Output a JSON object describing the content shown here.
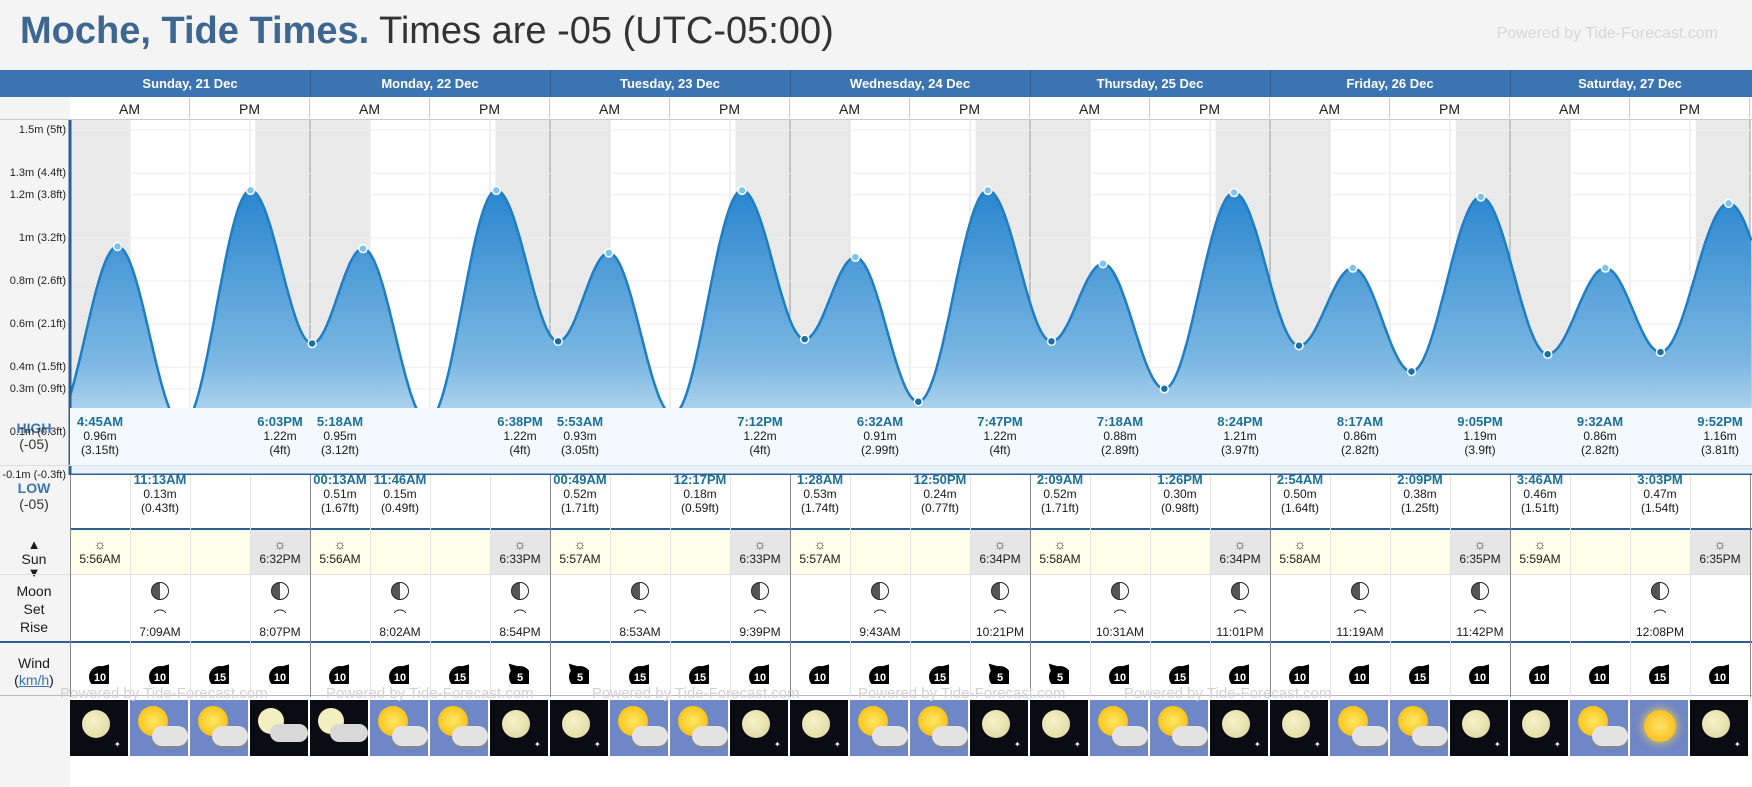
{
  "header": {
    "location": "Moche, Tide Times.",
    "timezone": "Times are -05 (UTC-05:00)",
    "powered": "Powered by Tide-Forecast.com"
  },
  "days": [
    "Sunday, 21 Dec",
    "Monday, 22 Dec",
    "Tuesday, 23 Dec",
    "Wednesday, 24 Dec",
    "Thursday, 25 Dec",
    "Friday, 26 Dec",
    "Saturday, 27 Dec"
  ],
  "ampm": [
    "AM",
    "PM"
  ],
  "row_labels": {
    "high": "HIGH",
    "high_tz": "(-05)",
    "low": "LOW",
    "low_tz": "(-05)",
    "sun": "Sun",
    "moon": "Moon",
    "set": "Set",
    "rise": "Rise",
    "wind": "Wind",
    "wind_unit": "km/h"
  },
  "chart_data": {
    "type": "area",
    "y_unit": "m",
    "ylim": [
      -0.1,
      1.5
    ],
    "y_ticks": [
      "-0.1m (-0.3ft)",
      "0.1m (0.3ft)",
      "0.3m (0.9ft)",
      "0.4m (1.5ft)",
      "0.6m (2.1ft)",
      "0.8m (2.6ft)",
      "1m (3.2ft)",
      "1.2m (3.8ft)",
      "1.3m (4.4ft)",
      "1.5m (5ft)"
    ],
    "y_tick_values": [
      -0.1,
      0.1,
      0.3,
      0.4,
      0.6,
      0.8,
      1.0,
      1.2,
      1.3,
      1.5
    ],
    "x_range": [
      "2025-12-21 00:00",
      "2025-12-28 00:00"
    ],
    "series": [
      {
        "points": [
          {
            "t": "2025-12-21 04:45",
            "h": 0.96
          },
          {
            "t": "2025-12-21 11:13",
            "h": 0.13
          },
          {
            "t": "2025-12-21 18:03",
            "h": 1.22
          },
          {
            "t": "2025-12-22 00:13",
            "h": 0.51
          },
          {
            "t": "2025-12-22 05:18",
            "h": 0.95
          },
          {
            "t": "2025-12-22 11:46",
            "h": 0.15
          },
          {
            "t": "2025-12-22 18:38",
            "h": 1.22
          },
          {
            "t": "2025-12-23 00:49",
            "h": 0.52
          },
          {
            "t": "2025-12-23 05:53",
            "h": 0.93
          },
          {
            "t": "2025-12-23 12:17",
            "h": 0.18
          },
          {
            "t": "2025-12-23 19:12",
            "h": 1.22
          },
          {
            "t": "2025-12-24 01:28",
            "h": 0.53
          },
          {
            "t": "2025-12-24 06:32",
            "h": 0.91
          },
          {
            "t": "2025-12-24 12:50",
            "h": 0.24
          },
          {
            "t": "2025-12-24 19:47",
            "h": 1.22
          },
          {
            "t": "2025-12-25 02:09",
            "h": 0.52
          },
          {
            "t": "2025-12-25 07:18",
            "h": 0.88
          },
          {
            "t": "2025-12-25 13:26",
            "h": 0.3
          },
          {
            "t": "2025-12-25 20:24",
            "h": 1.21
          },
          {
            "t": "2025-12-26 02:54",
            "h": 0.5
          },
          {
            "t": "2025-12-26 08:17",
            "h": 0.86
          },
          {
            "t": "2025-12-26 14:09",
            "h": 0.38
          },
          {
            "t": "2025-12-26 21:05",
            "h": 1.19
          },
          {
            "t": "2025-12-27 03:46",
            "h": 0.46
          },
          {
            "t": "2025-12-27 09:32",
            "h": 0.86
          },
          {
            "t": "2025-12-27 15:03",
            "h": 0.47
          },
          {
            "t": "2025-12-27 21:52",
            "h": 1.16
          }
        ]
      }
    ],
    "night_periods": [
      [
        "2025-12-21 00:00",
        "2025-12-21 05:56"
      ],
      [
        "2025-12-21 18:32",
        "2025-12-22 05:56"
      ],
      [
        "2025-12-22 18:33",
        "2025-12-23 05:57"
      ],
      [
        "2025-12-23 18:33",
        "2025-12-24 05:57"
      ],
      [
        "2025-12-24 18:34",
        "2025-12-25 05:58"
      ],
      [
        "2025-12-25 18:34",
        "2025-12-26 05:58"
      ],
      [
        "2025-12-26 18:35",
        "2025-12-27 05:59"
      ],
      [
        "2025-12-27 18:35",
        "2025-12-28 00:00"
      ]
    ]
  },
  "tides_high": [
    {
      "t": "2025-12-21 04:45",
      "time": "4:45AM",
      "m": "0.96m",
      "ft": "(3.15ft)"
    },
    {
      "t": "2025-12-21 18:03",
      "time": "6:03PM",
      "m": "1.22m",
      "ft": "(4ft)"
    },
    {
      "t": "2025-12-22 05:18",
      "time": "5:18AM",
      "m": "0.95m",
      "ft": "(3.12ft)"
    },
    {
      "t": "2025-12-22 18:38",
      "time": "6:38PM",
      "m": "1.22m",
      "ft": "(4ft)"
    },
    {
      "t": "2025-12-23 05:53",
      "time": "5:53AM",
      "m": "0.93m",
      "ft": "(3.05ft)"
    },
    {
      "t": "2025-12-23 19:12",
      "time": "7:12PM",
      "m": "1.22m",
      "ft": "(4ft)"
    },
    {
      "t": "2025-12-24 06:32",
      "time": "6:32AM",
      "m": "0.91m",
      "ft": "(2.99ft)"
    },
    {
      "t": "2025-12-24 19:47",
      "time": "7:47PM",
      "m": "1.22m",
      "ft": "(4ft)"
    },
    {
      "t": "2025-12-25 07:18",
      "time": "7:18AM",
      "m": "0.88m",
      "ft": "(2.89ft)"
    },
    {
      "t": "2025-12-25 20:24",
      "time": "8:24PM",
      "m": "1.21m",
      "ft": "(3.97ft)"
    },
    {
      "t": "2025-12-26 08:17",
      "time": "8:17AM",
      "m": "0.86m",
      "ft": "(2.82ft)"
    },
    {
      "t": "2025-12-26 21:05",
      "time": "9:05PM",
      "m": "1.19m",
      "ft": "(3.9ft)"
    },
    {
      "t": "2025-12-27 09:32",
      "time": "9:32AM",
      "m": "0.86m",
      "ft": "(2.82ft)"
    },
    {
      "t": "2025-12-27 21:52",
      "time": "9:52PM",
      "m": "1.16m",
      "ft": "(3.81ft)"
    }
  ],
  "tides_low": [
    {
      "t": "2025-12-21 11:13",
      "time": "11:13AM",
      "m": "0.13m",
      "ft": "(0.43ft)"
    },
    {
      "t": "2025-12-22 00:13",
      "time": "00:13AM",
      "m": "0.51m",
      "ft": "(1.67ft)"
    },
    {
      "t": "2025-12-22 11:46",
      "time": "11:46AM",
      "m": "0.15m",
      "ft": "(0.49ft)"
    },
    {
      "t": "2025-12-23 00:49",
      "time": "00:49AM",
      "m": "0.52m",
      "ft": "(1.71ft)"
    },
    {
      "t": "2025-12-23 12:17",
      "time": "12:17PM",
      "m": "0.18m",
      "ft": "(0.59ft)"
    },
    {
      "t": "2025-12-24 01:28",
      "time": "1:28AM",
      "m": "0.53m",
      "ft": "(1.74ft)"
    },
    {
      "t": "2025-12-24 12:50",
      "time": "12:50PM",
      "m": "0.24m",
      "ft": "(0.77ft)"
    },
    {
      "t": "2025-12-25 02:09",
      "time": "2:09AM",
      "m": "0.52m",
      "ft": "(1.71ft)"
    },
    {
      "t": "2025-12-25 13:26",
      "time": "1:26PM",
      "m": "0.30m",
      "ft": "(0.98ft)"
    },
    {
      "t": "2025-12-26 02:54",
      "time": "2:54AM",
      "m": "0.50m",
      "ft": "(1.64ft)"
    },
    {
      "t": "2025-12-26 14:09",
      "time": "2:09PM",
      "m": "0.38m",
      "ft": "(1.25ft)"
    },
    {
      "t": "2025-12-27 03:46",
      "time": "3:46AM",
      "m": "0.46m",
      "ft": "(1.51ft)"
    },
    {
      "t": "2025-12-27 15:03",
      "time": "3:03PM",
      "m": "0.47m",
      "ft": "(1.54ft)"
    }
  ],
  "sun": [
    {
      "rise": "5:56AM",
      "set": "6:32PM"
    },
    {
      "rise": "5:56AM",
      "set": "6:33PM"
    },
    {
      "rise": "5:57AM",
      "set": "6:33PM"
    },
    {
      "rise": "5:57AM",
      "set": "6:34PM"
    },
    {
      "rise": "5:58AM",
      "set": "6:34PM"
    },
    {
      "rise": "5:58AM",
      "set": "6:35PM"
    },
    {
      "rise": "5:59AM",
      "set": "6:35PM"
    }
  ],
  "moon": [
    {
      "t": "2025-12-21 07:09",
      "time": "7:09AM",
      "kind": "rise"
    },
    {
      "t": "2025-12-21 20:07",
      "time": "8:07PM",
      "kind": "set"
    },
    {
      "t": "2025-12-22 08:02",
      "time": "8:02AM",
      "kind": "rise"
    },
    {
      "t": "2025-12-22 20:54",
      "time": "8:54PM",
      "kind": "set"
    },
    {
      "t": "2025-12-23 08:53",
      "time": "8:53AM",
      "kind": "rise"
    },
    {
      "t": "2025-12-23 21:39",
      "time": "9:39PM",
      "kind": "set"
    },
    {
      "t": "2025-12-24 09:43",
      "time": "9:43AM",
      "kind": "rise"
    },
    {
      "t": "2025-12-24 22:21",
      "time": "10:21PM",
      "kind": "set"
    },
    {
      "t": "2025-12-25 10:31",
      "time": "10:31AM",
      "kind": "rise"
    },
    {
      "t": "2025-12-25 23:01",
      "time": "11:01PM",
      "kind": "set"
    },
    {
      "t": "2025-12-26 11:19",
      "time": "11:19AM",
      "kind": "rise"
    },
    {
      "t": "2025-12-26 23:42",
      "time": "11:42PM",
      "kind": "set"
    },
    {
      "t": "2025-12-27 12:08",
      "time": "12:08PM",
      "kind": "rise"
    }
  ],
  "wind": [
    {
      "v": "10",
      "dir": "NE"
    },
    {
      "v": "10",
      "dir": "NE"
    },
    {
      "v": "15",
      "dir": "NE"
    },
    {
      "v": "10",
      "dir": "NE"
    },
    {
      "v": "10",
      "dir": "NE"
    },
    {
      "v": "10",
      "dir": "NE"
    },
    {
      "v": "15",
      "dir": "NE"
    },
    {
      "v": "5",
      "dir": "NW"
    },
    {
      "v": "5",
      "dir": "NW"
    },
    {
      "v": "15",
      "dir": "NE"
    },
    {
      "v": "15",
      "dir": "NE"
    },
    {
      "v": "10",
      "dir": "NE"
    },
    {
      "v": "10",
      "dir": "NE"
    },
    {
      "v": "10",
      "dir": "NE"
    },
    {
      "v": "15",
      "dir": "NE"
    },
    {
      "v": "5",
      "dir": "NW"
    },
    {
      "v": "5",
      "dir": "NW"
    },
    {
      "v": "10",
      "dir": "NE"
    },
    {
      "v": "15",
      "dir": "NE"
    },
    {
      "v": "10",
      "dir": "NE"
    },
    {
      "v": "10",
      "dir": "NE"
    },
    {
      "v": "10",
      "dir": "NE"
    },
    {
      "v": "15",
      "dir": "NE"
    },
    {
      "v": "10",
      "dir": "NE"
    },
    {
      "v": "10",
      "dir": "NE"
    },
    {
      "v": "10",
      "dir": "NE"
    },
    {
      "v": "15",
      "dir": "NE"
    },
    {
      "v": "10",
      "dir": "NE"
    }
  ],
  "weather": [
    "night-clear",
    "sun-cloud",
    "sun-cloud",
    "moon-cloud",
    "moon-cloud",
    "sun-cloud",
    "sun-cloud",
    "night-clear",
    "night-clear",
    "sun-cloud",
    "sun-cloud",
    "night-clear",
    "night-clear",
    "sun-cloud",
    "sun-cloud",
    "night-clear",
    "night-clear",
    "sun-cloud",
    "sun-cloud",
    "night-clear",
    "night-clear",
    "sun-cloud",
    "sun-cloud",
    "night-clear",
    "night-clear",
    "sun-cloud",
    "sunny",
    "night-clear"
  ],
  "colors": {
    "band": "#3a74b2",
    "tide_line": "#2f86c3",
    "tide_fill_top": "#3a8fd1",
    "tide_fill_bottom": "#e8f2fa",
    "night": "#e9e9e9",
    "sun_row": "#fdfde8",
    "high_bg": "#f3f9fd"
  }
}
